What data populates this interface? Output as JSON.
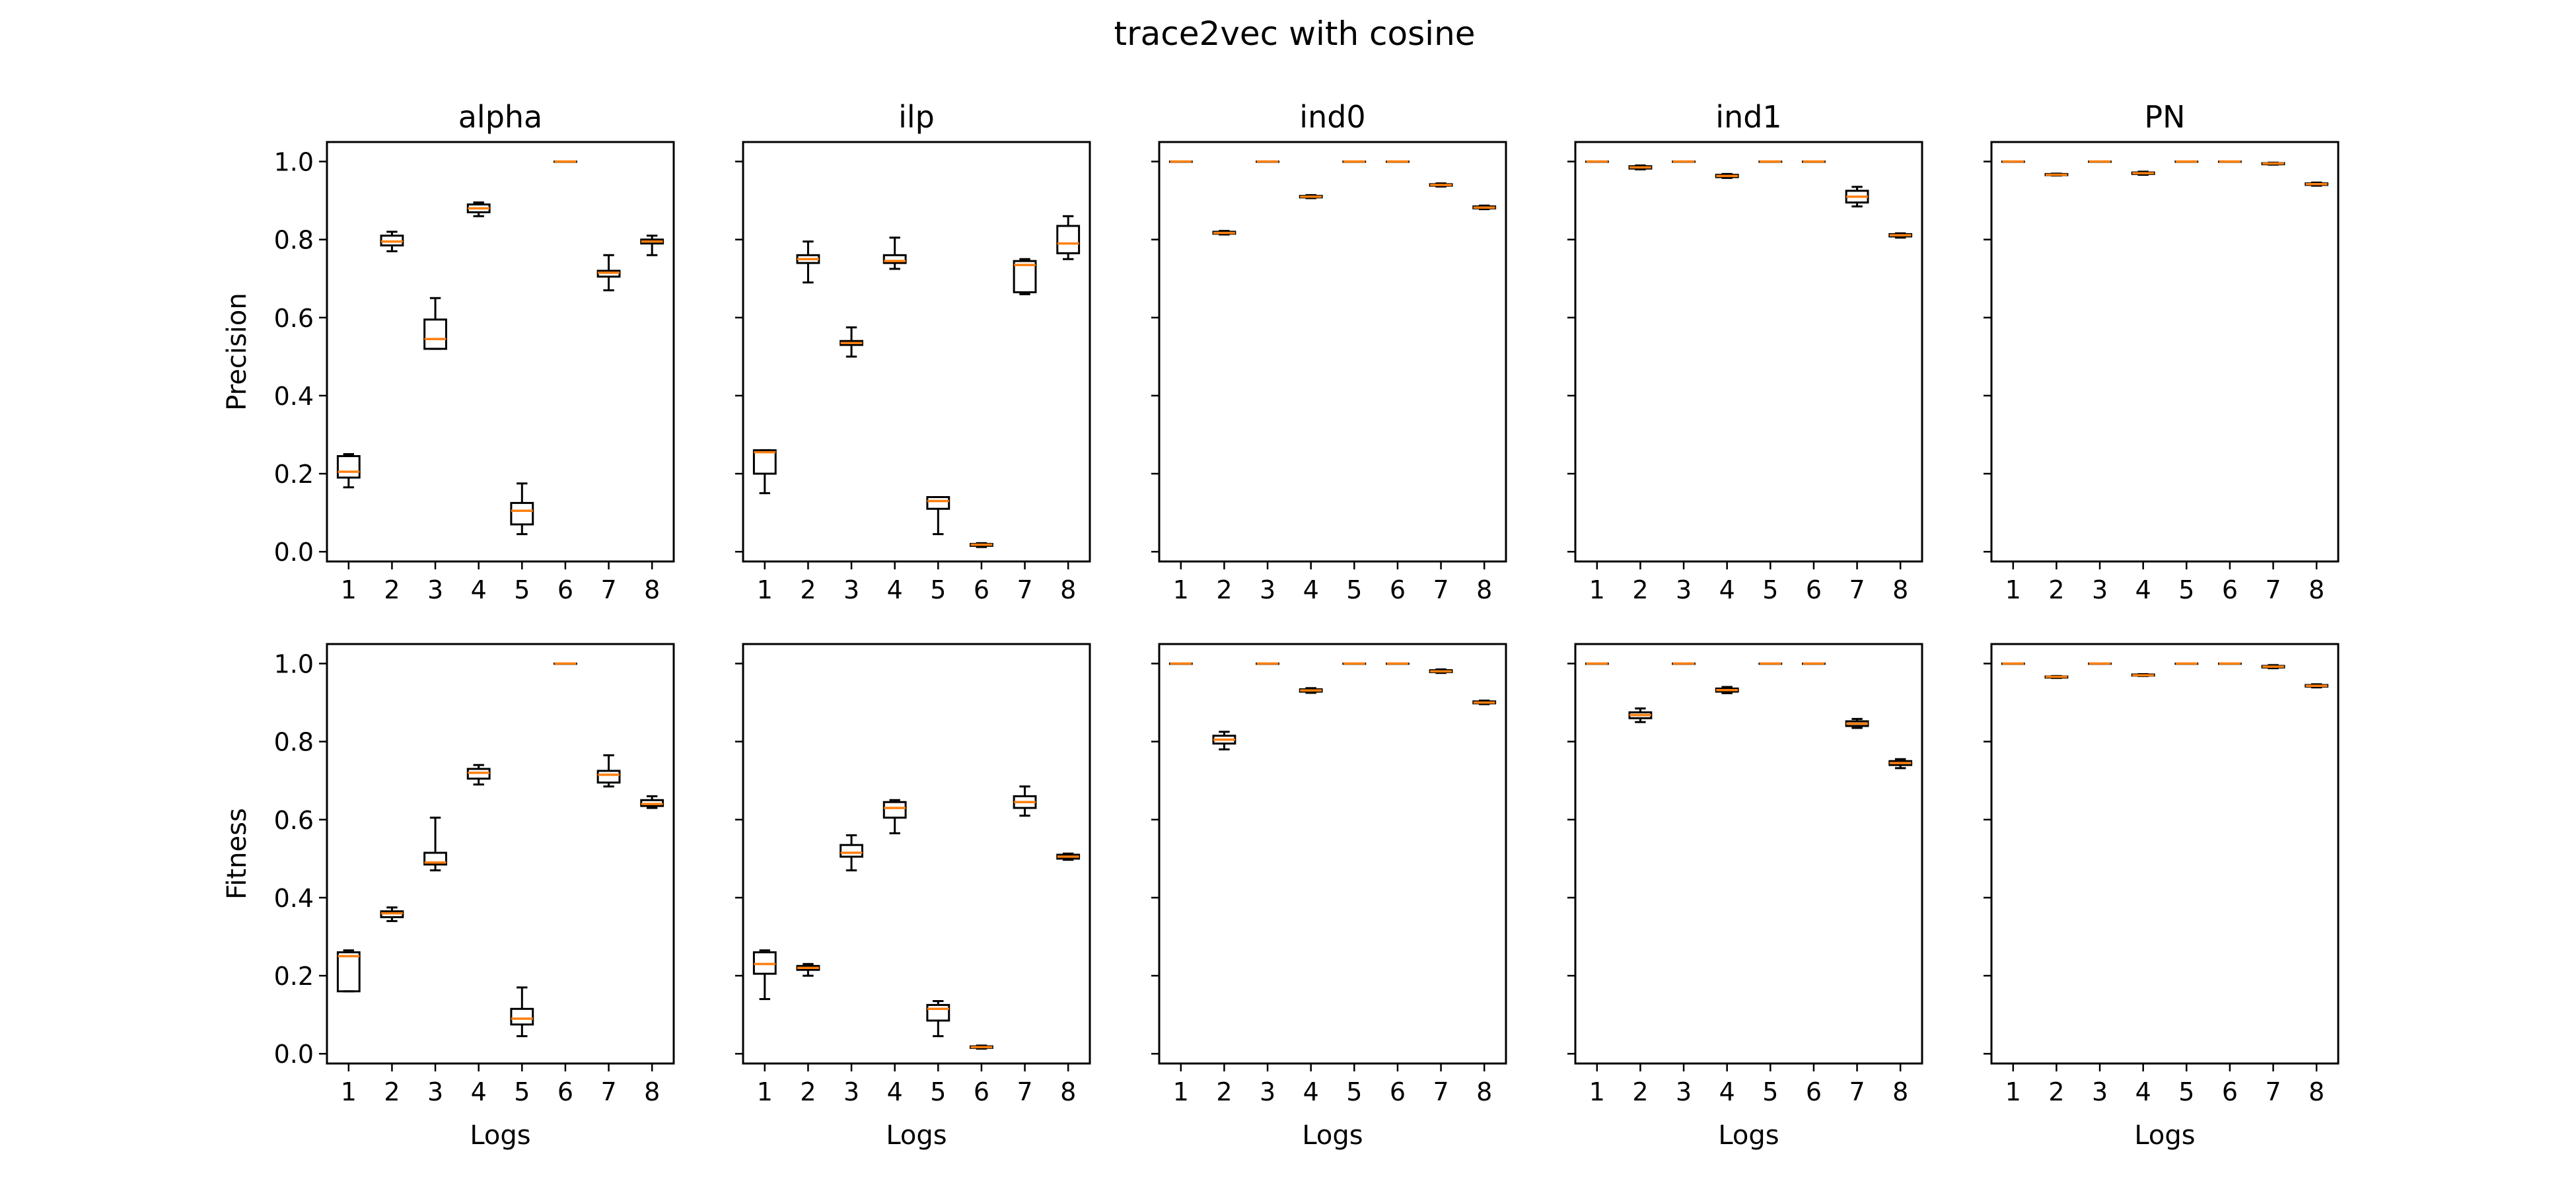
{
  "figure": {
    "title": "trace2vec with cosine"
  },
  "chart_data": {
    "type": "box",
    "suptitle": "trace2vec with cosine",
    "column_titles": [
      "alpha",
      "ilp",
      "ind0",
      "ind1",
      "PN"
    ],
    "row_ylabels": [
      "Precision",
      "Fitness"
    ],
    "xlabel": "Logs",
    "categories": [
      "1",
      "2",
      "3",
      "4",
      "5",
      "6",
      "7",
      "8"
    ],
    "yticks": [
      "0.0",
      "0.2",
      "0.4",
      "0.6",
      "0.8",
      "1.0"
    ],
    "ylim": [
      -0.025,
      1.05
    ],
    "colors": {
      "box": "#000000",
      "median": "#ff7f0e"
    },
    "panels": [
      {
        "row": "Precision",
        "column": "alpha",
        "boxes": [
          {
            "q1": 0.19,
            "q3": 0.245,
            "median": 0.205,
            "low": 0.165,
            "high": 0.25
          },
          {
            "q1": 0.785,
            "q3": 0.81,
            "median": 0.795,
            "low": 0.77,
            "high": 0.82
          },
          {
            "q1": 0.52,
            "q3": 0.595,
            "median": 0.545,
            "low": 0.52,
            "high": 0.65
          },
          {
            "q1": 0.87,
            "q3": 0.89,
            "median": 0.88,
            "low": 0.86,
            "high": 0.895
          },
          {
            "q1": 0.07,
            "q3": 0.125,
            "median": 0.105,
            "low": 0.045,
            "high": 0.175
          },
          {
            "q1": 1.0,
            "q3": 1.0,
            "median": 1.0,
            "low": 1.0,
            "high": 1.0
          },
          {
            "q1": 0.705,
            "q3": 0.72,
            "median": 0.715,
            "low": 0.67,
            "high": 0.76
          },
          {
            "q1": 0.79,
            "q3": 0.8,
            "median": 0.795,
            "low": 0.76,
            "high": 0.81
          }
        ]
      },
      {
        "row": "Precision",
        "column": "ilp",
        "boxes": [
          {
            "q1": 0.2,
            "q3": 0.26,
            "median": 0.255,
            "low": 0.15,
            "high": 0.26
          },
          {
            "q1": 0.74,
            "q3": 0.76,
            "median": 0.75,
            "low": 0.69,
            "high": 0.795
          },
          {
            "q1": 0.53,
            "q3": 0.54,
            "median": 0.535,
            "low": 0.5,
            "high": 0.575
          },
          {
            "q1": 0.74,
            "q3": 0.76,
            "median": 0.745,
            "low": 0.725,
            "high": 0.805
          },
          {
            "q1": 0.11,
            "q3": 0.14,
            "median": 0.13,
            "low": 0.045,
            "high": 0.14
          },
          {
            "q1": 0.015,
            "q3": 0.02,
            "median": 0.018,
            "low": 0.012,
            "high": 0.022
          },
          {
            "q1": 0.665,
            "q3": 0.745,
            "median": 0.735,
            "low": 0.66,
            "high": 0.75
          },
          {
            "q1": 0.765,
            "q3": 0.835,
            "median": 0.79,
            "low": 0.75,
            "high": 0.86
          }
        ]
      },
      {
        "row": "Precision",
        "column": "ind0",
        "boxes": [
          {
            "q1": 1.0,
            "q3": 1.0,
            "median": 1.0,
            "low": 1.0,
            "high": 1.0
          },
          {
            "q1": 0.815,
            "q3": 0.82,
            "median": 0.817,
            "low": 0.813,
            "high": 0.822
          },
          {
            "q1": 1.0,
            "q3": 1.0,
            "median": 1.0,
            "low": 1.0,
            "high": 1.0
          },
          {
            "q1": 0.908,
            "q3": 0.912,
            "median": 0.91,
            "low": 0.906,
            "high": 0.914
          },
          {
            "q1": 1.0,
            "q3": 1.0,
            "median": 1.0,
            "low": 1.0,
            "high": 1.0
          },
          {
            "q1": 1.0,
            "q3": 1.0,
            "median": 1.0,
            "low": 1.0,
            "high": 1.0
          },
          {
            "q1": 0.938,
            "q3": 0.942,
            "median": 0.94,
            "low": 0.936,
            "high": 0.944
          },
          {
            "q1": 0.88,
            "q3": 0.885,
            "median": 0.882,
            "low": 0.878,
            "high": 0.887
          }
        ]
      },
      {
        "row": "Precision",
        "column": "ind1",
        "boxes": [
          {
            "q1": 1.0,
            "q3": 1.0,
            "median": 1.0,
            "low": 1.0,
            "high": 1.0
          },
          {
            "q1": 0.982,
            "q3": 0.988,
            "median": 0.985,
            "low": 0.98,
            "high": 0.99
          },
          {
            "q1": 1.0,
            "q3": 1.0,
            "median": 1.0,
            "low": 1.0,
            "high": 1.0
          },
          {
            "q1": 0.96,
            "q3": 0.966,
            "median": 0.963,
            "low": 0.958,
            "high": 0.968
          },
          {
            "q1": 1.0,
            "q3": 1.0,
            "median": 1.0,
            "low": 1.0,
            "high": 1.0
          },
          {
            "q1": 1.0,
            "q3": 1.0,
            "median": 1.0,
            "low": 1.0,
            "high": 1.0
          },
          {
            "q1": 0.895,
            "q3": 0.925,
            "median": 0.91,
            "low": 0.885,
            "high": 0.935
          },
          {
            "q1": 0.808,
            "q3": 0.814,
            "median": 0.811,
            "low": 0.805,
            "high": 0.816
          }
        ]
      },
      {
        "row": "Precision",
        "column": "PN",
        "boxes": [
          {
            "q1": 1.0,
            "q3": 1.0,
            "median": 1.0,
            "low": 1.0,
            "high": 1.0
          },
          {
            "q1": 0.965,
            "q3": 0.968,
            "median": 0.966,
            "low": 0.964,
            "high": 0.969
          },
          {
            "q1": 1.0,
            "q3": 1.0,
            "median": 1.0,
            "low": 1.0,
            "high": 1.0
          },
          {
            "q1": 0.968,
            "q3": 0.972,
            "median": 0.97,
            "low": 0.966,
            "high": 0.974
          },
          {
            "q1": 1.0,
            "q3": 1.0,
            "median": 1.0,
            "low": 1.0,
            "high": 1.0
          },
          {
            "q1": 1.0,
            "q3": 1.0,
            "median": 1.0,
            "low": 1.0,
            "high": 1.0
          },
          {
            "q1": 0.993,
            "q3": 0.996,
            "median": 0.995,
            "low": 0.992,
            "high": 0.997
          },
          {
            "q1": 0.94,
            "q3": 0.944,
            "median": 0.942,
            "low": 0.938,
            "high": 0.946
          }
        ]
      },
      {
        "row": "Fitness",
        "column": "alpha",
        "boxes": [
          {
            "q1": 0.16,
            "q3": 0.26,
            "median": 0.25,
            "low": 0.16,
            "high": 0.265
          },
          {
            "q1": 0.35,
            "q3": 0.365,
            "median": 0.36,
            "low": 0.34,
            "high": 0.375
          },
          {
            "q1": 0.485,
            "q3": 0.515,
            "median": 0.49,
            "low": 0.47,
            "high": 0.605
          },
          {
            "q1": 0.705,
            "q3": 0.73,
            "median": 0.72,
            "low": 0.69,
            "high": 0.74
          },
          {
            "q1": 0.075,
            "q3": 0.115,
            "median": 0.09,
            "low": 0.045,
            "high": 0.17
          },
          {
            "q1": 1.0,
            "q3": 1.0,
            "median": 1.0,
            "low": 1.0,
            "high": 1.0
          },
          {
            "q1": 0.695,
            "q3": 0.725,
            "median": 0.715,
            "low": 0.685,
            "high": 0.765
          },
          {
            "q1": 0.635,
            "q3": 0.65,
            "median": 0.64,
            "low": 0.63,
            "high": 0.66
          }
        ]
      },
      {
        "row": "Fitness",
        "column": "ilp",
        "boxes": [
          {
            "q1": 0.205,
            "q3": 0.26,
            "median": 0.23,
            "low": 0.14,
            "high": 0.265
          },
          {
            "q1": 0.215,
            "q3": 0.225,
            "median": 0.22,
            "low": 0.2,
            "high": 0.23
          },
          {
            "q1": 0.505,
            "q3": 0.535,
            "median": 0.515,
            "low": 0.47,
            "high": 0.56
          },
          {
            "q1": 0.605,
            "q3": 0.645,
            "median": 0.63,
            "low": 0.565,
            "high": 0.65
          },
          {
            "q1": 0.085,
            "q3": 0.125,
            "median": 0.115,
            "low": 0.045,
            "high": 0.135
          },
          {
            "q1": 0.015,
            "q3": 0.019,
            "median": 0.017,
            "low": 0.013,
            "high": 0.021
          },
          {
            "q1": 0.63,
            "q3": 0.66,
            "median": 0.645,
            "low": 0.61,
            "high": 0.685
          },
          {
            "q1": 0.5,
            "q3": 0.51,
            "median": 0.505,
            "low": 0.497,
            "high": 0.513
          }
        ]
      },
      {
        "row": "Fitness",
        "column": "ind0",
        "boxes": [
          {
            "q1": 1.0,
            "q3": 1.0,
            "median": 1.0,
            "low": 1.0,
            "high": 1.0
          },
          {
            "q1": 0.795,
            "q3": 0.815,
            "median": 0.805,
            "low": 0.78,
            "high": 0.825
          },
          {
            "q1": 1.0,
            "q3": 1.0,
            "median": 1.0,
            "low": 1.0,
            "high": 1.0
          },
          {
            "q1": 0.928,
            "q3": 0.934,
            "median": 0.931,
            "low": 0.925,
            "high": 0.937
          },
          {
            "q1": 1.0,
            "q3": 1.0,
            "median": 1.0,
            "low": 1.0,
            "high": 1.0
          },
          {
            "q1": 1.0,
            "q3": 1.0,
            "median": 1.0,
            "low": 1.0,
            "high": 1.0
          },
          {
            "q1": 0.978,
            "q3": 0.983,
            "median": 0.98,
            "low": 0.976,
            "high": 0.985
          },
          {
            "q1": 0.898,
            "q3": 0.903,
            "median": 0.9,
            "low": 0.896,
            "high": 0.905
          }
        ]
      },
      {
        "row": "Fitness",
        "column": "ind1",
        "boxes": [
          {
            "q1": 1.0,
            "q3": 1.0,
            "median": 1.0,
            "low": 1.0,
            "high": 1.0
          },
          {
            "q1": 0.86,
            "q3": 0.875,
            "median": 0.868,
            "low": 0.85,
            "high": 0.885
          },
          {
            "q1": 1.0,
            "q3": 1.0,
            "median": 1.0,
            "low": 1.0,
            "high": 1.0
          },
          {
            "q1": 0.928,
            "q3": 0.936,
            "median": 0.932,
            "low": 0.924,
            "high": 0.94
          },
          {
            "q1": 1.0,
            "q3": 1.0,
            "median": 1.0,
            "low": 1.0,
            "high": 1.0
          },
          {
            "q1": 1.0,
            "q3": 1.0,
            "median": 1.0,
            "low": 1.0,
            "high": 1.0
          },
          {
            "q1": 0.84,
            "q3": 0.852,
            "median": 0.846,
            "low": 0.835,
            "high": 0.858
          },
          {
            "q1": 0.74,
            "q3": 0.75,
            "median": 0.745,
            "low": 0.732,
            "high": 0.755
          }
        ]
      },
      {
        "row": "Fitness",
        "column": "PN",
        "boxes": [
          {
            "q1": 1.0,
            "q3": 1.0,
            "median": 1.0,
            "low": 1.0,
            "high": 1.0
          },
          {
            "q1": 0.964,
            "q3": 0.967,
            "median": 0.966,
            "low": 0.963,
            "high": 0.968
          },
          {
            "q1": 1.0,
            "q3": 1.0,
            "median": 1.0,
            "low": 1.0,
            "high": 1.0
          },
          {
            "q1": 0.969,
            "q3": 0.972,
            "median": 0.97,
            "low": 0.968,
            "high": 0.973
          },
          {
            "q1": 1.0,
            "q3": 1.0,
            "median": 1.0,
            "low": 1.0,
            "high": 1.0
          },
          {
            "q1": 1.0,
            "q3": 1.0,
            "median": 1.0,
            "low": 1.0,
            "high": 1.0
          },
          {
            "q1": 0.99,
            "q3": 0.994,
            "median": 0.992,
            "low": 0.988,
            "high": 0.996
          },
          {
            "q1": 0.941,
            "q3": 0.945,
            "median": 0.943,
            "low": 0.939,
            "high": 0.947
          }
        ]
      }
    ]
  }
}
